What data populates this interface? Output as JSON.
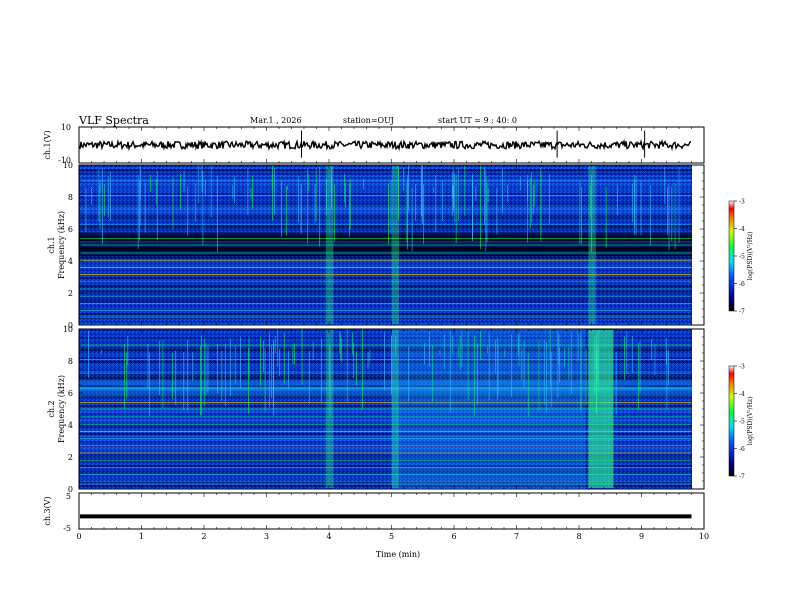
{
  "header": {
    "title": "VLF Spectra",
    "date": "Mar.1 , 2026",
    "station": "station=OUJ",
    "start": "start UT = 9 : 40: 0"
  },
  "chart_data": [
    {
      "type": "line",
      "panel": "ch1-waveform",
      "ylabel": "ch.1(V)",
      "ylim": [
        -10,
        10
      ],
      "y_ticks": [
        "10",
        "-10"
      ],
      "xlim": [
        0,
        10
      ],
      "mean_value": 0,
      "spikes_at_min": [
        3.56,
        7.65,
        9.05
      ],
      "color": "#000000"
    },
    {
      "type": "heatmap",
      "panel": "ch1-spectrogram",
      "ylabel": "ch.1\nFrequency (kHz)",
      "ylim": [
        0,
        10
      ],
      "y_ticks": [
        "0",
        "2",
        "4",
        "6",
        "8",
        "10"
      ],
      "xlim": [
        0,
        9.8
      ],
      "colorbar": {
        "label": "log(PSD)(V²/Hz)",
        "ticks": [
          "-3",
          "-4",
          "-5",
          "-6",
          "-7"
        ],
        "range": [
          -7,
          -3
        ]
      },
      "quiet_band_khz": [
        4.3,
        5.8
      ],
      "hum_lines_khz": [
        0.45,
        0.9,
        1.35,
        1.8,
        2.25,
        2.7,
        3.15,
        3.6,
        4.05,
        4.5,
        5.0,
        5.4,
        6.3,
        7.2,
        8.1,
        9.0
      ],
      "broadband_bursts_min": [
        3.95,
        5.0,
        8.15
      ]
    },
    {
      "type": "heatmap",
      "panel": "ch2-spectrogram",
      "ylabel": "ch.2\nFrequency (kHz)",
      "ylim": [
        0,
        10
      ],
      "y_ticks": [
        "0",
        "2",
        "4",
        "6",
        "8",
        "10"
      ],
      "xlim": [
        0,
        9.8
      ],
      "colorbar": {
        "label": "log(PSD)(V²/Hz)",
        "ticks": [
          "-3",
          "-4",
          "-5",
          "-6",
          "-7"
        ],
        "range": [
          -7,
          -3
        ]
      },
      "activity_band_khz": [
        5.8,
        6.8
      ],
      "broadband_bursts_min": [
        3.95,
        5.0,
        8.15,
        8.35
      ]
    },
    {
      "type": "line",
      "panel": "ch3-waveform",
      "ylabel": "ch.3(V)",
      "ylim": [
        -5,
        5
      ],
      "y_ticks": [
        "5",
        "-5"
      ],
      "xlim": [
        0,
        10
      ],
      "mean_value": -1.5,
      "xlabel": "Time (min)",
      "x_ticks": [
        "0",
        "1",
        "2",
        "3",
        "4",
        "5",
        "6",
        "7",
        "8",
        "9",
        "10"
      ],
      "color": "#000000"
    }
  ]
}
